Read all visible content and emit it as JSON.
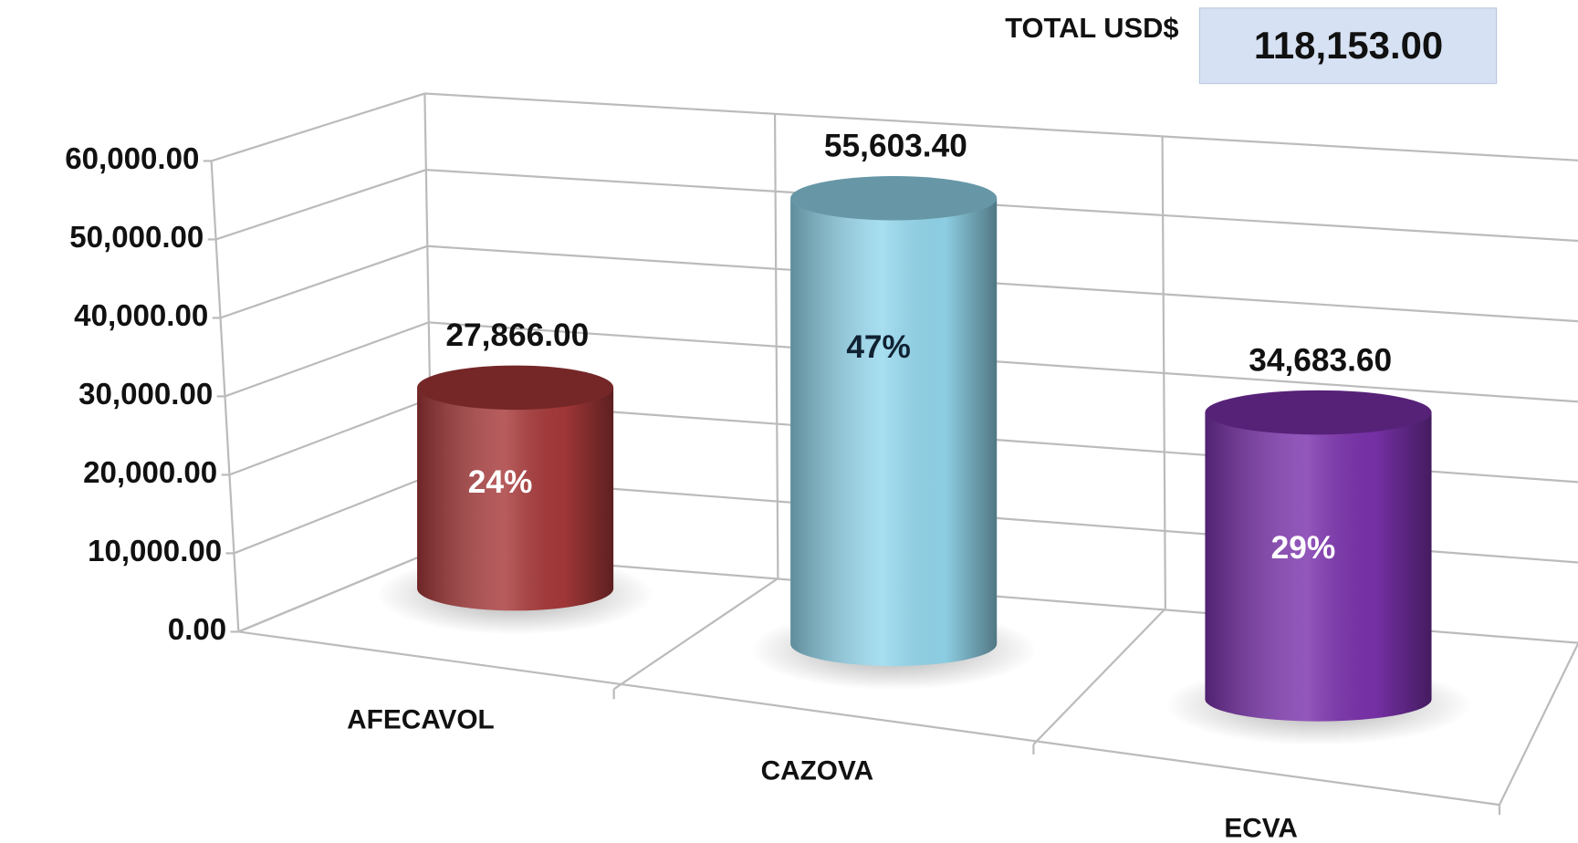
{
  "chart_data": {
    "type": "bar",
    "categories": [
      "AFECAVOL",
      "CAZOVA",
      "ECVA"
    ],
    "values": [
      27866,
      55603.4,
      34683.6
    ],
    "value_labels": [
      "27,866.00",
      "55,603.40",
      "34,683.60"
    ],
    "percentage_labels": [
      "24%",
      "47%",
      "29%"
    ],
    "colors": [
      "#a8393a",
      "#94d8ee",
      "#7b32ad"
    ],
    "ylim": [
      0,
      60000
    ],
    "yticks": [
      {
        "value": 0,
        "label": "0.00"
      },
      {
        "value": 10000,
        "label": "10,000.00"
      },
      {
        "value": 20000,
        "label": "20,000.00"
      },
      {
        "value": 30000,
        "label": "30,000.00"
      },
      {
        "value": 40000,
        "label": "40,000.00"
      },
      {
        "value": 50000,
        "label": "50,000.00"
      },
      {
        "value": 60000,
        "label": "60,000.00"
      }
    ],
    "grid": true,
    "total": {
      "label": "TOTAL USD$",
      "value": "118,153.00"
    }
  }
}
